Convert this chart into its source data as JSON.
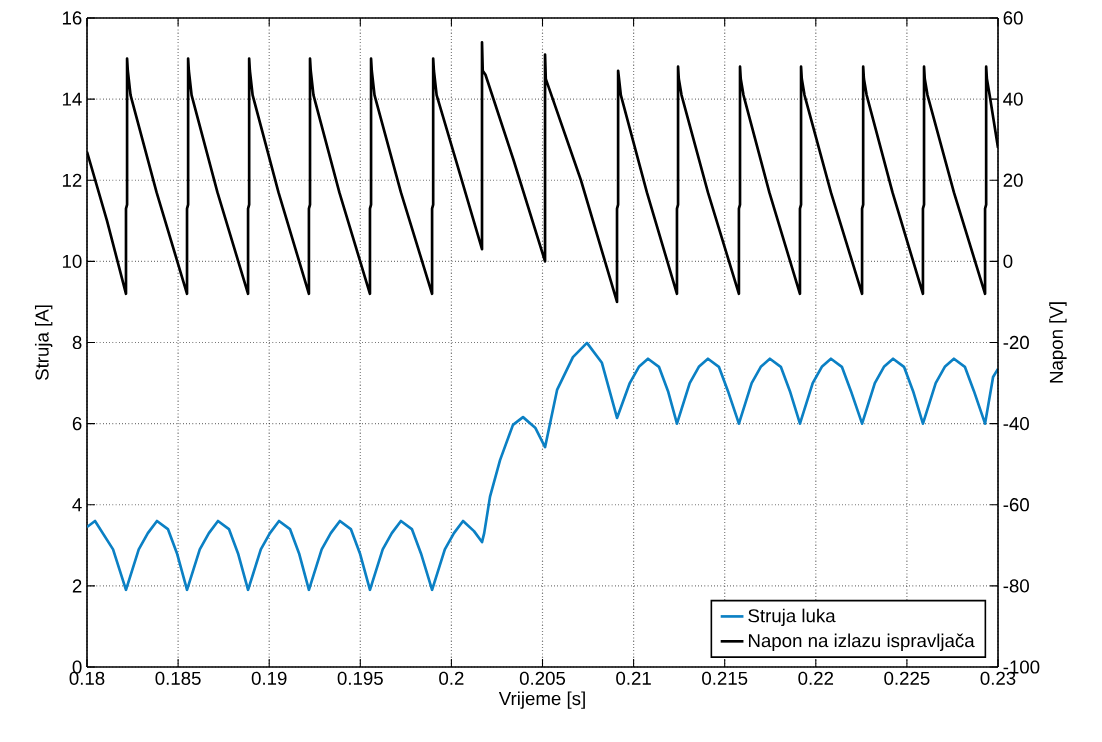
{
  "chart_data": {
    "type": "line",
    "xlabel": "Vrijeme [s]",
    "ylabel": "Struja [A]",
    "y2label": "Napon [V]",
    "xlim": [
      0.18,
      0.23
    ],
    "xticks": [
      0.18,
      0.185,
      0.19,
      0.195,
      0.2,
      0.205,
      0.21,
      0.215,
      0.22,
      0.225,
      0.23
    ],
    "ylim": [
      0,
      16
    ],
    "yticks": [
      0,
      2,
      4,
      6,
      8,
      10,
      12,
      14,
      16
    ],
    "y2lim": [
      -100,
      60
    ],
    "y2ticks": [
      -100,
      -80,
      -60,
      -40,
      -20,
      0,
      20,
      40,
      60
    ],
    "grid": true,
    "legend": "bottom right",
    "series": [
      {
        "name": "Struja luka",
        "color": "#0b80c4",
        "axis": "y",
        "x": [
          0.18,
          0.18044,
          0.18143,
          0.18214,
          0.18284,
          0.18334,
          0.18384,
          0.18444,
          0.18494,
          0.18549,
          0.18619,
          0.18669,
          0.18719,
          0.18779,
          0.18829,
          0.18884,
          0.18954,
          0.19004,
          0.19054,
          0.19114,
          0.19164,
          0.19218,
          0.19288,
          0.19338,
          0.19388,
          0.19448,
          0.19498,
          0.19553,
          0.19623,
          0.19673,
          0.19723,
          0.19783,
          0.19833,
          0.19894,
          0.19964,
          0.20014,
          0.20064,
          0.20124,
          0.20168,
          0.2018,
          0.20212,
          0.20267,
          0.20338,
          0.20393,
          0.2046,
          0.20514,
          0.2058,
          0.20667,
          0.20744,
          0.20826,
          0.20909,
          0.20979,
          0.21029,
          0.21079,
          0.21139,
          0.21189,
          0.21238,
          0.21308,
          0.21358,
          0.21408,
          0.21468,
          0.21518,
          0.21578,
          0.21648,
          0.21698,
          0.21748,
          0.21808,
          0.21858,
          0.21913,
          0.21983,
          0.22033,
          0.22083,
          0.22143,
          0.22193,
          0.22254,
          0.22324,
          0.22374,
          0.22424,
          0.22484,
          0.22534,
          0.22588,
          0.22658,
          0.22708,
          0.22758,
          0.22818,
          0.22868,
          0.22929,
          0.22973,
          0.23
        ],
        "values": [
          3.45,
          3.6,
          2.9,
          1.9,
          2.9,
          3.3,
          3.6,
          3.4,
          2.8,
          1.9,
          2.9,
          3.3,
          3.6,
          3.4,
          2.8,
          1.9,
          2.9,
          3.3,
          3.6,
          3.4,
          2.8,
          1.9,
          2.9,
          3.3,
          3.6,
          3.4,
          2.8,
          1.9,
          2.9,
          3.3,
          3.6,
          3.4,
          2.8,
          1.9,
          2.9,
          3.3,
          3.6,
          3.35,
          3.08,
          3.3,
          4.2,
          5.1,
          5.97,
          6.16,
          5.9,
          5.42,
          6.83,
          7.64,
          7.99,
          7.5,
          6.14,
          7.0,
          7.4,
          7.6,
          7.4,
          6.8,
          6.0,
          7.0,
          7.4,
          7.6,
          7.4,
          6.8,
          6.0,
          7.0,
          7.4,
          7.6,
          7.4,
          6.8,
          6.0,
          7.0,
          7.4,
          7.6,
          7.4,
          6.8,
          6.0,
          7.0,
          7.4,
          7.6,
          7.4,
          6.8,
          6.0,
          7.0,
          7.4,
          7.6,
          7.4,
          6.8,
          6.0,
          7.15,
          7.35
        ]
      },
      {
        "name": "Napon na izlazu ispravljača",
        "color": "#000000",
        "axis": "y2",
        "x": [
          0.18,
          0.1811,
          0.18214,
          0.18214,
          0.1822,
          0.1822,
          0.18224,
          0.18239,
          0.18382,
          0.18549,
          0.18549,
          0.18555,
          0.18555,
          0.18559,
          0.18574,
          0.18716,
          0.18884,
          0.18884,
          0.1889,
          0.1889,
          0.18894,
          0.18909,
          0.19051,
          0.19218,
          0.19218,
          0.19224,
          0.19224,
          0.19228,
          0.19243,
          0.19385,
          0.19553,
          0.19553,
          0.19559,
          0.19559,
          0.19563,
          0.19578,
          0.19723,
          0.19894,
          0.19894,
          0.199,
          0.199,
          0.19904,
          0.19919,
          0.20031,
          0.20168,
          0.20168,
          0.20172,
          0.20187,
          0.20341,
          0.20514,
          0.20514,
          0.20518,
          0.20711,
          0.20909,
          0.20909,
          0.20915,
          0.20915,
          0.2093,
          0.21073,
          0.21238,
          0.21238,
          0.21244,
          0.21244,
          0.21248,
          0.21263,
          0.21408,
          0.21578,
          0.21578,
          0.21584,
          0.21584,
          0.21588,
          0.21603,
          0.21745,
          0.21913,
          0.21913,
          0.21919,
          0.21919,
          0.21923,
          0.21938,
          0.22083,
          0.22254,
          0.22254,
          0.2226,
          0.2226,
          0.22264,
          0.22279,
          0.22421,
          0.22588,
          0.22588,
          0.22594,
          0.22594,
          0.22598,
          0.22613,
          0.22758,
          0.22929,
          0.22929,
          0.22935,
          0.22935,
          0.22939,
          0.22954,
          0.23
        ],
        "values": [
          27,
          10,
          -8,
          13,
          14,
          50,
          47,
          41,
          17,
          -8,
          13,
          14,
          50,
          47,
          41,
          17,
          -8,
          13,
          14,
          50,
          47,
          41,
          17,
          -8,
          13,
          14,
          50,
          47,
          41,
          17,
          -8,
          13,
          14,
          50,
          47,
          41,
          17,
          -8,
          13,
          14,
          50,
          47,
          41,
          24,
          3,
          54,
          47,
          46,
          25,
          0,
          51,
          45,
          20,
          -10,
          13,
          14,
          47,
          41,
          17,
          -8,
          13,
          14,
          48,
          45,
          41,
          17,
          -8,
          13,
          14,
          48,
          45,
          41,
          17,
          -8,
          13,
          14,
          48,
          45,
          41,
          17,
          -8,
          13,
          14,
          48,
          45,
          41,
          17,
          -8,
          13,
          14,
          48,
          45,
          41,
          17,
          -8,
          13,
          14,
          48,
          45,
          41,
          28
        ]
      }
    ]
  }
}
